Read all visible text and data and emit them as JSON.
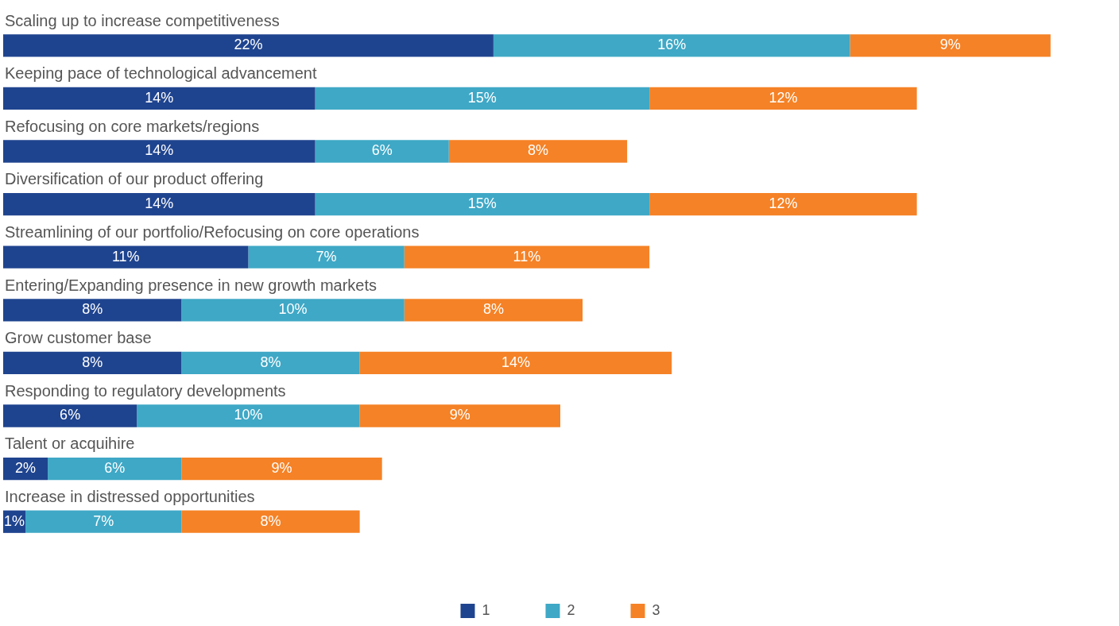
{
  "chart_data": {
    "type": "bar",
    "orientation": "horizontal",
    "stacked": true,
    "legend": "bottom",
    "tick_labels": false,
    "categories": [
      "Scaling up to increase competitiveness",
      "Keeping pace of technological advancement",
      "Refocusing on core markets/regions",
      "Diversification of our product offering",
      "Streamlining of our portfolio/Refocusing on core operations",
      "Entering/Expanding presence in new growth markets",
      "Grow customer base",
      "Responding to regulatory developments",
      "Talent or acquihire",
      "Increase in distressed opportunities"
    ],
    "series": [
      {
        "name": "1",
        "color": "#1f448f",
        "values": [
          22,
          14,
          14,
          14,
          11,
          8,
          8,
          6,
          2,
          1
        ],
        "value_labels": [
          "22%",
          "14%",
          "14%",
          "14%",
          "11%",
          "8%",
          "8%",
          "6%",
          "2%",
          "1%"
        ]
      },
      {
        "name": "2",
        "color": "#3fa8c6",
        "values": [
          16,
          15,
          6,
          15,
          7,
          10,
          8,
          10,
          6,
          7
        ],
        "value_labels": [
          "16%",
          "15%",
          "6%",
          "15%",
          "7%",
          "10%",
          "8%",
          "10%",
          "6%",
          "7%"
        ]
      },
      {
        "name": "3",
        "color": "#f58226",
        "values": [
          9,
          12,
          8,
          12,
          11,
          8,
          14,
          9,
          9,
          8
        ],
        "value_labels": [
          "9%",
          "12%",
          "8%",
          "12%",
          "11%",
          "8%",
          "14%",
          "9%",
          "9%",
          "8%"
        ]
      }
    ]
  }
}
